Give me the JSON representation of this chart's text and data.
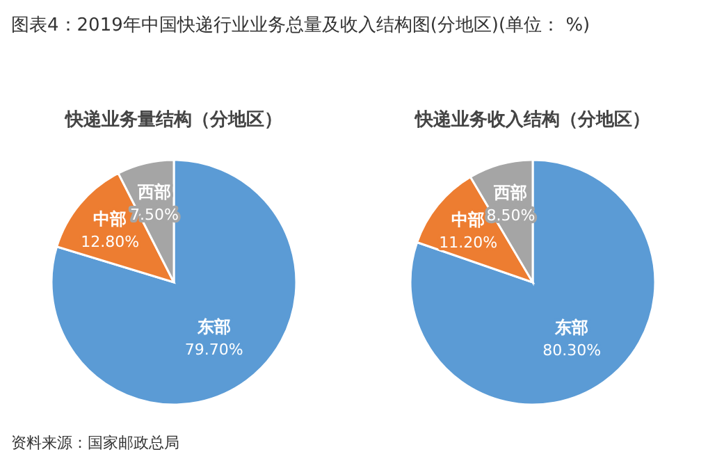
{
  "chart_data": [
    {
      "type": "pie",
      "title": "图表4：2019年中国快递行业业务总量及收入结构图(分地区)(单位： %)",
      "subtitle": "快递业务量结构（分地区）",
      "categories": [
        "东部",
        "中部",
        "西部"
      ],
      "values": [
        79.7,
        12.8,
        7.5
      ],
      "colors": [
        "#5b9bd5",
        "#ed7d31",
        "#a5a5a5"
      ],
      "value_labels": [
        "79.70%",
        "12.80%",
        "7.50%"
      ],
      "annotations": [
        "资料来源：国家邮政总局"
      ],
      "legend": false
    },
    {
      "type": "pie",
      "title": "快递业务收入结构（分地区）",
      "categories": [
        "东部",
        "中部",
        "西部"
      ],
      "values": [
        80.3,
        11.2,
        8.5
      ],
      "colors": [
        "#5b9bd5",
        "#ed7d31",
        "#a5a5a5"
      ],
      "value_labels": [
        "80.30%",
        "11.20%",
        "8.50%"
      ],
      "legend": false
    }
  ]
}
